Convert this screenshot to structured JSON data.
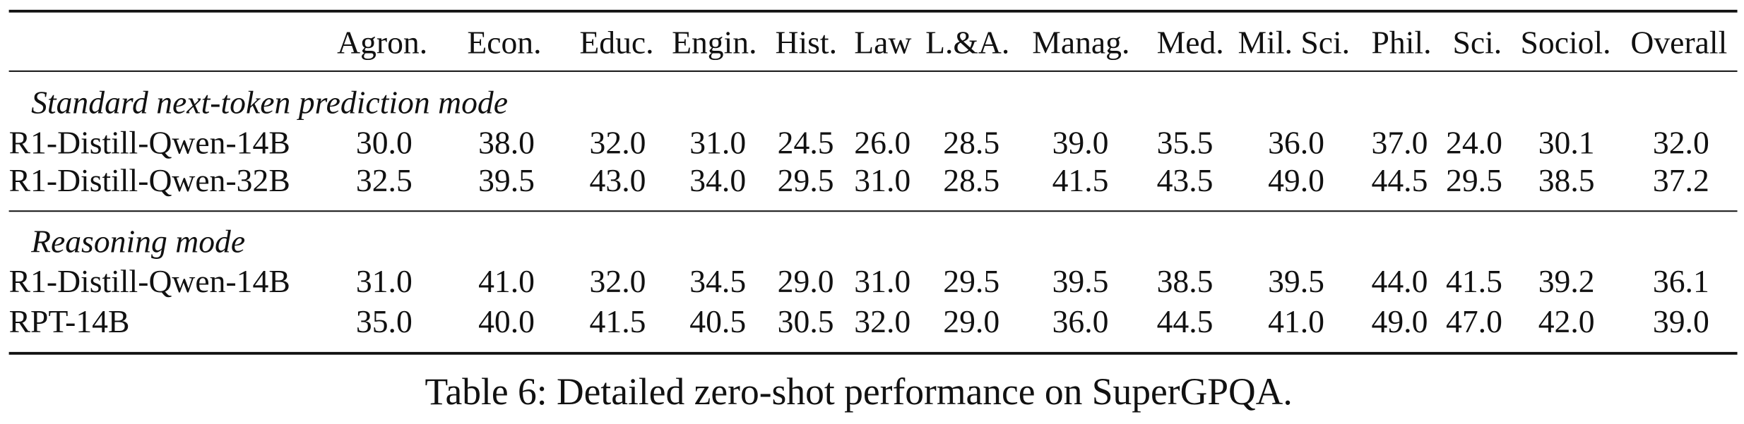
{
  "table": {
    "header": [
      "Agron.",
      "Econ.",
      "Educ.",
      "Engin.",
      "Hist.",
      "Law",
      "L.&A.",
      "Manag.",
      "Med.",
      "Mil. Sci.",
      "Phil.",
      "Sci.",
      "Sociol.",
      "Overall"
    ],
    "groups": [
      {
        "label": "Standard next-token prediction mode",
        "rows": [
          {
            "model": "R1-Distill-Qwen-14B",
            "values": [
              "30.0",
              "38.0",
              "32.0",
              "31.0",
              "24.5",
              "26.0",
              "28.5",
              "39.0",
              "35.5",
              "36.0",
              "37.0",
              "24.0",
              "30.1",
              "32.0"
            ]
          },
          {
            "model": "R1-Distill-Qwen-32B",
            "values": [
              "32.5",
              "39.5",
              "43.0",
              "34.0",
              "29.5",
              "31.0",
              "28.5",
              "41.5",
              "43.5",
              "49.0",
              "44.5",
              "29.5",
              "38.5",
              "37.2"
            ]
          }
        ]
      },
      {
        "label": "Reasoning mode",
        "rows": [
          {
            "model": "R1-Distill-Qwen-14B",
            "values": [
              "31.0",
              "41.0",
              "32.0",
              "34.5",
              "29.0",
              "31.0",
              "29.5",
              "39.5",
              "38.5",
              "39.5",
              "44.0",
              "41.5",
              "39.2",
              "36.1"
            ]
          },
          {
            "model": "RPT-14B",
            "values": [
              "35.0",
              "40.0",
              "41.5",
              "40.5",
              "30.5",
              "32.0",
              "29.0",
              "36.0",
              "44.5",
              "41.0",
              "49.0",
              "47.0",
              "42.0",
              "39.0"
            ]
          }
        ]
      }
    ],
    "caption": "Table 6: Detailed zero-shot performance on SuperGPQA."
  }
}
